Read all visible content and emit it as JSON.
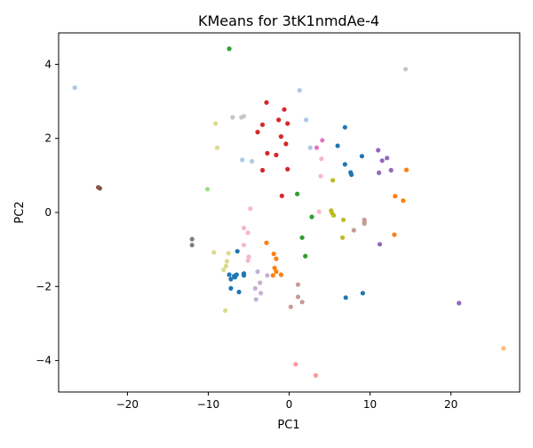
{
  "chart_data": {
    "type": "scatter",
    "title": "KMeans for 3tK1nmdAe-4",
    "xlabel": "PC1",
    "ylabel": "PC2",
    "xlim": [
      -28.5,
      28.5
    ],
    "ylim": [
      -4.85,
      4.85
    ],
    "xticks": [
      -20,
      -10,
      0,
      10,
      20
    ],
    "yticks": [
      -4,
      -2,
      0,
      2,
      4
    ],
    "grid": false,
    "legend": "none",
    "cluster_colors": {
      "c0": "#1f77b4",
      "c1": "#aec7e8",
      "c2": "#ff7f0e",
      "c3": "#ffbb78",
      "c4": "#2ca02c",
      "c5": "#98df8a",
      "c6": "#d62728",
      "c7": "#ff9896",
      "c8": "#9467bd",
      "c9": "#c5b0d5",
      "c10": "#8c564b",
      "c11": "#c49c94",
      "c12": "#e377c2",
      "c13": "#f7b6d2",
      "c14": "#7f7f7f",
      "c15": "#c7c7c7",
      "c16": "#bcbd22",
      "c17": "#dbdb8d",
      "c18": "#17becf",
      "c19": "#9edae5"
    },
    "series": [
      {
        "cluster": "c0",
        "points": [
          [
            -6.4,
            -1.05
          ],
          [
            -7.4,
            -1.68
          ],
          [
            -6.8,
            -1.72
          ],
          [
            -6.5,
            -1.68
          ],
          [
            -5.6,
            -1.65
          ],
          [
            -5.6,
            -1.7
          ],
          [
            -7.2,
            -1.8
          ],
          [
            -6.7,
            -1.75
          ],
          [
            -7.2,
            -2.05
          ],
          [
            -6.2,
            -2.15
          ],
          [
            6.9,
            2.3
          ],
          [
            6.0,
            1.8
          ],
          [
            6.9,
            1.3
          ],
          [
            7.6,
            1.08
          ],
          [
            7.7,
            1.02
          ],
          [
            9.0,
            1.52
          ],
          [
            7.0,
            -2.3
          ],
          [
            9.1,
            -2.18
          ]
        ]
      },
      {
        "cluster": "c1",
        "points": [
          [
            -26.5,
            3.37
          ],
          [
            1.3,
            3.3
          ],
          [
            2.1,
            2.5
          ],
          [
            2.6,
            1.75
          ],
          [
            -5.8,
            1.42
          ],
          [
            -4.6,
            1.38
          ]
        ]
      },
      {
        "cluster": "c2",
        "points": [
          [
            -2.8,
            -0.82
          ],
          [
            -1.9,
            -1.12
          ],
          [
            -1.6,
            -1.25
          ],
          [
            -1.8,
            -1.5
          ],
          [
            -1.6,
            -1.6
          ],
          [
            -2.0,
            -1.7
          ],
          [
            -1.0,
            -1.68
          ],
          [
            13.1,
            0.44
          ],
          [
            14.1,
            0.32
          ],
          [
            14.5,
            1.15
          ],
          [
            13.0,
            -0.6
          ]
        ]
      },
      {
        "cluster": "c3",
        "points": [
          [
            26.5,
            -3.67
          ]
        ]
      },
      {
        "cluster": "c4",
        "points": [
          [
            -7.4,
            4.42
          ],
          [
            1.0,
            0.5
          ],
          [
            2.8,
            -0.12
          ],
          [
            1.6,
            -0.68
          ],
          [
            2.0,
            -1.18
          ]
        ]
      },
      {
        "cluster": "c5",
        "points": [
          [
            -10.1,
            0.63
          ]
        ]
      },
      {
        "cluster": "c6",
        "points": [
          [
            -2.8,
            2.97
          ],
          [
            -0.6,
            2.78
          ],
          [
            -1.3,
            2.5
          ],
          [
            -0.2,
            2.4
          ],
          [
            -3.3,
            2.37
          ],
          [
            -3.9,
            2.17
          ],
          [
            -1.0,
            2.05
          ],
          [
            -0.4,
            1.85
          ],
          [
            -2.7,
            1.6
          ],
          [
            -1.6,
            1.55
          ],
          [
            -3.3,
            1.14
          ],
          [
            -0.2,
            1.17
          ],
          [
            -0.9,
            0.45
          ]
        ]
      },
      {
        "cluster": "c7",
        "points": [
          [
            0.8,
            -4.1
          ],
          [
            3.3,
            -4.4
          ]
        ]
      },
      {
        "cluster": "c8",
        "points": [
          [
            11.0,
            1.68
          ],
          [
            12.1,
            1.47
          ],
          [
            11.5,
            1.4
          ],
          [
            12.6,
            1.14
          ],
          [
            11.1,
            1.07
          ],
          [
            11.2,
            -0.86
          ],
          [
            21.0,
            -2.45
          ]
        ]
      },
      {
        "cluster": "c9",
        "points": [
          [
            -3.9,
            -1.6
          ],
          [
            -2.7,
            -1.7
          ],
          [
            -3.6,
            -1.9
          ],
          [
            -4.2,
            -2.05
          ],
          [
            -3.5,
            -2.18
          ],
          [
            -4.1,
            -2.35
          ]
        ]
      },
      {
        "cluster": "c10",
        "points": [
          [
            -23.6,
            0.68
          ],
          [
            -23.4,
            0.65
          ]
        ]
      },
      {
        "cluster": "c11",
        "points": [
          [
            9.3,
            -0.2
          ],
          [
            9.3,
            -0.25
          ],
          [
            9.3,
            -0.3
          ],
          [
            8.0,
            -0.48
          ],
          [
            1.1,
            -1.95
          ],
          [
            1.1,
            -2.28
          ],
          [
            1.6,
            -2.42
          ],
          [
            0.2,
            -2.55
          ]
        ]
      },
      {
        "cluster": "c12",
        "points": [
          [
            4.1,
            1.95
          ],
          [
            3.4,
            1.75
          ]
        ]
      },
      {
        "cluster": "c13",
        "points": [
          [
            -4.8,
            0.1
          ],
          [
            -5.6,
            -0.42
          ],
          [
            -5.1,
            -0.55
          ],
          [
            -5.6,
            -0.88
          ],
          [
            -5.0,
            -1.2
          ],
          [
            -5.1,
            -1.3
          ],
          [
            4.0,
            1.45
          ],
          [
            3.9,
            0.98
          ],
          [
            3.7,
            0.02
          ]
        ]
      },
      {
        "cluster": "c14",
        "points": [
          [
            -12.0,
            -0.72
          ],
          [
            -12.0,
            -0.88
          ]
        ]
      },
      {
        "cluster": "c15",
        "points": [
          [
            -7.0,
            2.57
          ],
          [
            -5.9,
            2.57
          ],
          [
            -5.6,
            2.6
          ],
          [
            14.4,
            3.87
          ]
        ]
      },
      {
        "cluster": "c16",
        "points": [
          [
            5.4,
            0.87
          ],
          [
            5.2,
            0.05
          ],
          [
            5.3,
            -0.02
          ],
          [
            5.5,
            -0.08
          ],
          [
            6.7,
            -0.2
          ],
          [
            6.6,
            -0.68
          ]
        ]
      },
      {
        "cluster": "c17",
        "points": [
          [
            -9.1,
            2.4
          ],
          [
            -8.9,
            1.75
          ],
          [
            -9.3,
            -1.08
          ],
          [
            -7.5,
            -1.1
          ],
          [
            -7.7,
            -1.32
          ],
          [
            -7.8,
            -1.45
          ],
          [
            -8.1,
            -1.55
          ],
          [
            -7.9,
            -2.65
          ]
        ]
      }
    ]
  }
}
